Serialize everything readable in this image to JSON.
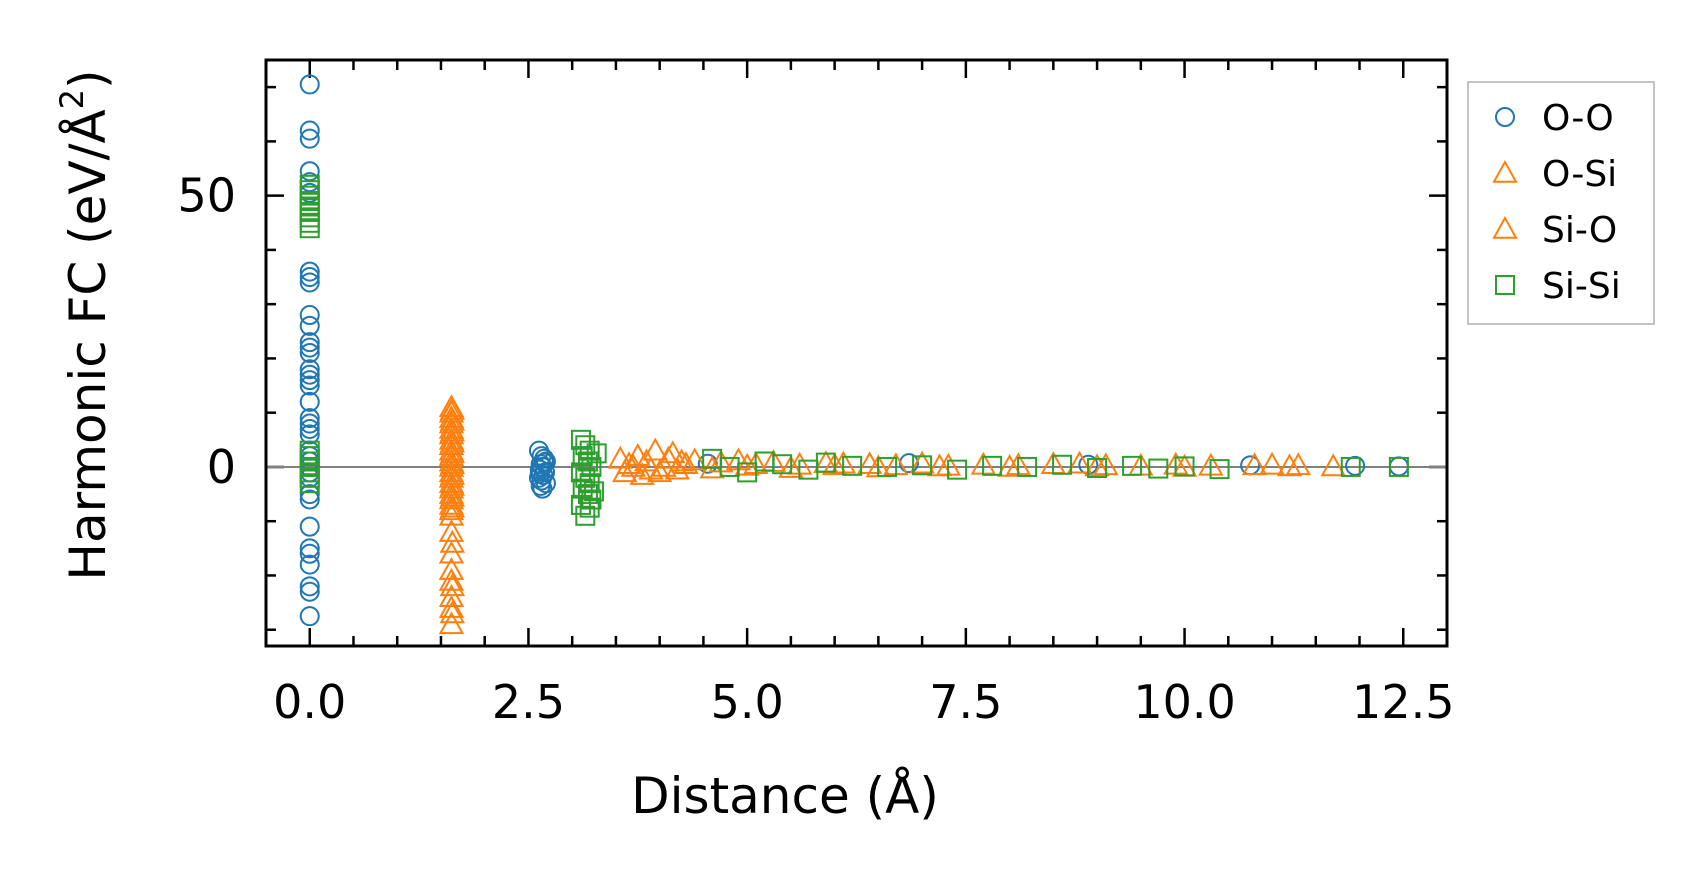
{
  "chart_data": {
    "type": "scatter",
    "xlabel": "Distance (Å)",
    "ylabel_main": "Harmonic FC (eV/Å",
    "ylabel_sup": "2",
    "ylabel_close": ")",
    "xlim": [
      -0.5,
      13.0
    ],
    "ylim": [
      -33,
      75
    ],
    "x_ticks": [
      0.0,
      2.5,
      5.0,
      7.5,
      10.0,
      12.5
    ],
    "x_tick_labels": [
      "0.0",
      "2.5",
      "5.0",
      "7.5",
      "10.0",
      "12.5"
    ],
    "y_ticks": [
      0,
      50
    ],
    "y_tick_labels": [
      "0",
      "50"
    ],
    "x_minor_step": 0.5,
    "y_minor_step": 10,
    "zero_line": true,
    "grid": false,
    "legend_position": "outside-right",
    "series": [
      {
        "name": "O-O",
        "marker": "circle",
        "color": "#1f77b4",
        "points": [
          [
            0,
            70.5
          ],
          [
            0,
            62
          ],
          [
            0,
            60.5
          ],
          [
            0,
            54.5
          ],
          [
            0,
            52.5
          ],
          [
            0,
            50.5
          ],
          [
            0,
            36
          ],
          [
            0,
            35
          ],
          [
            0,
            34
          ],
          [
            0,
            28
          ],
          [
            0,
            26
          ],
          [
            0,
            23
          ],
          [
            0,
            22
          ],
          [
            0,
            21
          ],
          [
            0,
            18
          ],
          [
            0,
            17
          ],
          [
            0,
            16
          ],
          [
            0,
            15
          ],
          [
            0,
            12
          ],
          [
            0,
            9
          ],
          [
            0,
            8
          ],
          [
            0,
            7
          ],
          [
            0,
            6
          ],
          [
            0,
            3
          ],
          [
            0,
            2
          ],
          [
            0,
            1
          ],
          [
            0,
            0
          ],
          [
            0,
            -1
          ],
          [
            0,
            -2
          ],
          [
            0,
            -5
          ],
          [
            0,
            -6
          ],
          [
            0,
            -11
          ],
          [
            0,
            -15
          ],
          [
            0,
            -16
          ],
          [
            0,
            -18
          ],
          [
            0,
            -22
          ],
          [
            0,
            -23
          ],
          [
            0,
            -27.5
          ],
          [
            2.62,
            3
          ],
          [
            2.65,
            2
          ],
          [
            2.68,
            1.5
          ],
          [
            2.7,
            1
          ],
          [
            2.64,
            0.5
          ],
          [
            2.66,
            0
          ],
          [
            2.63,
            -0.5
          ],
          [
            2.69,
            -1
          ],
          [
            2.67,
            -1.5
          ],
          [
            2.62,
            -2
          ],
          [
            2.65,
            -2.5
          ],
          [
            2.7,
            -3
          ],
          [
            2.64,
            -3.5
          ],
          [
            2.66,
            -4
          ],
          [
            2.68,
            0.8
          ],
          [
            2.63,
            -1.2
          ],
          [
            4.55,
            0.6
          ],
          [
            6.85,
            0.7
          ],
          [
            8.9,
            0.4
          ],
          [
            10.75,
            0.3
          ],
          [
            11.95,
            0.2
          ],
          [
            12.45,
            0.1
          ]
        ]
      },
      {
        "name": "O-Si",
        "marker": "triangle",
        "color": "#ff7f0e",
        "points": [
          [
            1.62,
            11
          ],
          [
            1.62,
            10
          ],
          [
            1.62,
            9
          ],
          [
            1.62,
            8
          ],
          [
            1.62,
            7
          ],
          [
            1.62,
            6
          ],
          [
            1.62,
            5
          ],
          [
            1.62,
            4
          ],
          [
            1.62,
            3
          ],
          [
            1.62,
            2
          ],
          [
            1.62,
            1
          ],
          [
            1.62,
            0
          ],
          [
            1.62,
            -1
          ],
          [
            1.62,
            -2
          ],
          [
            1.62,
            -3
          ],
          [
            1.62,
            -4
          ],
          [
            1.62,
            -5
          ],
          [
            1.62,
            -6
          ],
          [
            1.62,
            -7
          ],
          [
            1.62,
            -8
          ],
          [
            1.62,
            -9
          ],
          [
            1.62,
            -12
          ],
          [
            1.62,
            -16
          ],
          [
            1.62,
            -19
          ],
          [
            1.62,
            -21
          ],
          [
            1.62,
            -24
          ],
          [
            1.62,
            -26
          ],
          [
            1.62,
            -29
          ],
          [
            3.55,
            1.5
          ],
          [
            3.65,
            0.5
          ],
          [
            3.75,
            2
          ],
          [
            3.85,
            1
          ],
          [
            3.95,
            3
          ],
          [
            4.05,
            0
          ],
          [
            4.15,
            2.5
          ],
          [
            4.25,
            1
          ],
          [
            3.6,
            -1
          ],
          [
            3.8,
            -1.5
          ],
          [
            4.0,
            -1
          ],
          [
            4.2,
            -0.5
          ],
          [
            4.4,
            1.2
          ],
          [
            4.7,
            0.8
          ],
          [
            4.9,
            1.2
          ],
          [
            5.1,
            0.5
          ],
          [
            5.3,
            0.9
          ],
          [
            5.6,
            0.4
          ],
          [
            5.9,
            0.7
          ],
          [
            6.1,
            0.6
          ],
          [
            6.4,
            0.5
          ],
          [
            6.7,
            0.3
          ],
          [
            7.0,
            0.6
          ],
          [
            7.3,
            0.2
          ],
          [
            7.7,
            0.4
          ],
          [
            8.1,
            0.3
          ],
          [
            8.5,
            0.5
          ],
          [
            8.8,
            0.6
          ],
          [
            9.1,
            0.3
          ],
          [
            9.5,
            0.2
          ],
          [
            9.9,
            0.4
          ],
          [
            10.3,
            0.2
          ],
          [
            10.8,
            0.3
          ],
          [
            11.0,
            0.4
          ],
          [
            11.3,
            0.3
          ],
          [
            11.7,
            0.1
          ]
        ]
      },
      {
        "name": "Si-O",
        "marker": "triangle",
        "color": "#ff7f0e",
        "points": [
          [
            1.63,
            10.5
          ],
          [
            1.63,
            8.5
          ],
          [
            1.63,
            6.5
          ],
          [
            1.63,
            4.5
          ],
          [
            1.63,
            2.5
          ],
          [
            1.63,
            0.5
          ],
          [
            1.63,
            -1.5
          ],
          [
            1.63,
            -3.5
          ],
          [
            1.63,
            -5.5
          ],
          [
            1.63,
            -7.5
          ],
          [
            1.63,
            -14
          ],
          [
            1.63,
            -22
          ],
          [
            1.63,
            -27
          ],
          [
            3.7,
            0
          ],
          [
            3.9,
            -0.5
          ],
          [
            4.1,
            1.5
          ],
          [
            4.3,
            0.5
          ],
          [
            4.6,
            -0.3
          ],
          [
            5.0,
            0.2
          ],
          [
            5.5,
            -0.2
          ],
          [
            6.0,
            0.3
          ],
          [
            6.5,
            -0.1
          ],
          [
            7.2,
            0.1
          ],
          [
            8.0,
            0
          ],
          [
            9.0,
            0.1
          ],
          [
            10.0,
            0
          ],
          [
            11.2,
            0.1
          ]
        ]
      },
      {
        "name": "Si-Si",
        "marker": "square",
        "color": "#2ca02c",
        "points": [
          [
            0,
            52
          ],
          [
            0,
            51
          ],
          [
            0,
            50
          ],
          [
            0,
            49
          ],
          [
            0,
            48
          ],
          [
            0,
            47
          ],
          [
            0,
            46
          ],
          [
            0,
            45
          ],
          [
            0,
            44
          ],
          [
            0,
            3
          ],
          [
            0,
            2
          ],
          [
            0,
            1
          ],
          [
            0,
            0
          ],
          [
            0,
            -1
          ],
          [
            0,
            -2
          ],
          [
            0,
            -3
          ],
          [
            3.1,
            5
          ],
          [
            3.15,
            4
          ],
          [
            3.2,
            3
          ],
          [
            3.12,
            2
          ],
          [
            3.18,
            1
          ],
          [
            3.22,
            0
          ],
          [
            3.1,
            -1
          ],
          [
            3.15,
            -2
          ],
          [
            3.2,
            -3
          ],
          [
            3.12,
            -4
          ],
          [
            3.18,
            -5
          ],
          [
            3.22,
            -6
          ],
          [
            3.1,
            -7
          ],
          [
            3.15,
            -9
          ],
          [
            3.2,
            -7.5
          ],
          [
            3.25,
            -4.5
          ],
          [
            3.28,
            2.5
          ],
          [
            4.6,
            1.5
          ],
          [
            4.8,
            0
          ],
          [
            5.0,
            -1
          ],
          [
            5.2,
            1
          ],
          [
            5.4,
            0.5
          ],
          [
            5.7,
            -0.5
          ],
          [
            5.9,
            0.8
          ],
          [
            6.2,
            0.2
          ],
          [
            6.6,
            0
          ],
          [
            7.0,
            0.3
          ],
          [
            7.4,
            -0.5
          ],
          [
            7.8,
            0.2
          ],
          [
            8.2,
            0
          ],
          [
            8.6,
            0.4
          ],
          [
            9.0,
            -0.2
          ],
          [
            9.4,
            0.2
          ],
          [
            9.7,
            -0.3
          ],
          [
            10.0,
            0.1
          ],
          [
            10.4,
            -0.4
          ],
          [
            11.9,
            0
          ],
          [
            12.45,
            0
          ]
        ]
      }
    ],
    "legend_entries": [
      "O-O",
      "O-Si",
      "Si-O",
      "Si-Si"
    ]
  }
}
